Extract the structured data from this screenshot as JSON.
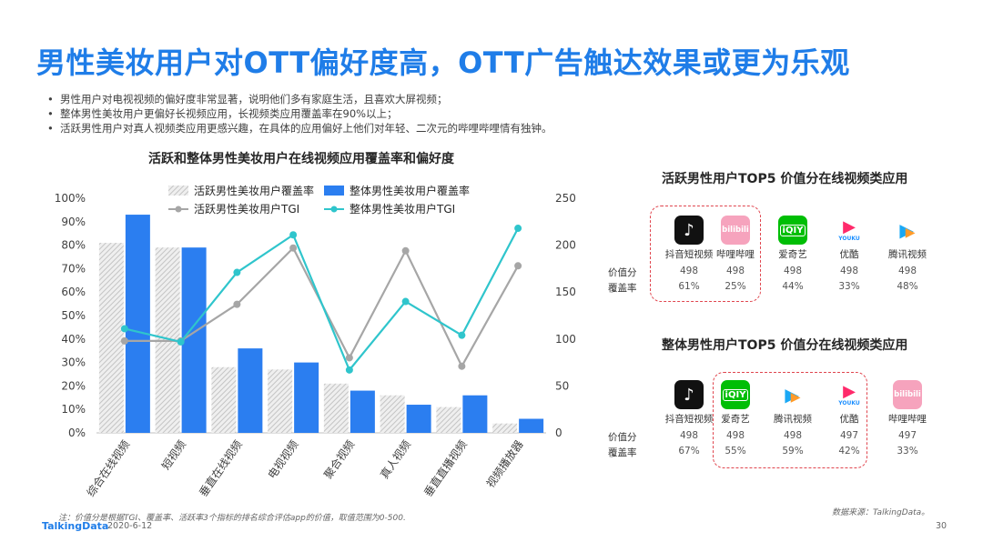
{
  "title": "男性美妆用户对OTT偏好度高，OTT广告触达效果或更为乐观",
  "bullets": [
    "男性用户对电视视频的偏好度非常显著，说明他们多有家庭生活，且喜欢大屏视频；",
    "整体男性美妆用户更偏好长视频应用，长视频类应用覆盖率在90%以上；",
    "活跃男性用户对真人视频类应用更感兴趣，在具体的应用偏好上他们对年轻、二次元的哔哩哔哩情有独钟。"
  ],
  "colors": {
    "accent": "#1f7de8",
    "bar_active": "#d9d9d9",
    "bar_total": "#2b7ef0",
    "line_active": "#a6a6a6",
    "line_total": "#2fc5cc",
    "dashed": "#e0454e"
  },
  "chart_data": {
    "type": "bar",
    "title": "活跃和整体男性美妆用户在线视频应用覆盖率和偏好度",
    "categories": [
      "综合在线视频",
      "短视频",
      "垂直在线视频",
      "电视视频",
      "聚合视频",
      "真人视频",
      "垂直直播视频",
      "视频播放器"
    ],
    "series": [
      {
        "name": "活跃男性美妆用户覆盖率",
        "kind": "bar",
        "axis": "left",
        "values": [
          81,
          79,
          28,
          27,
          21,
          16,
          11,
          4
        ]
      },
      {
        "name": "整体男性美妆用户覆盖率",
        "kind": "bar",
        "axis": "left",
        "values": [
          93,
          79,
          36,
          30,
          18,
          12,
          16,
          6
        ]
      },
      {
        "name": "活跃男性美妆用户TGI",
        "kind": "line",
        "axis": "right",
        "values": [
          98,
          98,
          137,
          197,
          80,
          194,
          71,
          178
        ]
      },
      {
        "name": "整体男性美妆用户TGI",
        "kind": "line",
        "axis": "right",
        "values": [
          111,
          97,
          171,
          211,
          67,
          140,
          104,
          218
        ]
      }
    ],
    "yleft": {
      "range": [
        0,
        100
      ],
      "ticks": [
        "0%",
        "10%",
        "20%",
        "30%",
        "40%",
        "50%",
        "60%",
        "70%",
        "80%",
        "90%",
        "100%"
      ]
    },
    "yright": {
      "range": [
        0,
        250
      ],
      "ticks": [
        "0",
        "50",
        "100",
        "150",
        "200",
        "250"
      ]
    }
  },
  "panels": [
    {
      "title": "活跃男性用户TOP5 价值分在线视频类应用",
      "row_labels": [
        "价值分",
        "覆盖率"
      ],
      "apps": [
        {
          "name": "抖音短视频",
          "icon": "douyin-icon",
          "score": "498",
          "coverage": "61%"
        },
        {
          "name": "哔哩哔哩",
          "icon": "bilibili-icon",
          "score": "498",
          "coverage": "25%"
        },
        {
          "name": "爱奇艺",
          "icon": "iqiyi-icon",
          "score": "498",
          "coverage": "44%"
        },
        {
          "name": "优酷",
          "icon": "youku-icon",
          "score": "498",
          "coverage": "33%"
        },
        {
          "name": "腾讯视频",
          "icon": "tencent-video-icon",
          "score": "498",
          "coverage": "48%"
        }
      ]
    },
    {
      "title": "整体男性用户TOP5 价值分在线视频类应用",
      "row_labels": [
        "价值分",
        "覆盖率"
      ],
      "apps": [
        {
          "name": "抖音短视频",
          "icon": "douyin-icon",
          "score": "498",
          "coverage": "67%"
        },
        {
          "name": "爱奇艺",
          "icon": "iqiyi-icon",
          "score": "498",
          "coverage": "55%"
        },
        {
          "name": "腾讯视频",
          "icon": "tencent-video-icon",
          "score": "498",
          "coverage": "59%"
        },
        {
          "name": "优酷",
          "icon": "youku-icon",
          "score": "497",
          "coverage": "42%"
        },
        {
          "name": "哔哩哔哩",
          "icon": "bilibili-icon",
          "score": "497",
          "coverage": "33%"
        }
      ]
    }
  ],
  "icon_labels": {
    "iqiyi": "iQIY",
    "youku": "YOUKU",
    "bilibili": "bilibili"
  },
  "footer": {
    "note": "注：价值分是根据TGI、覆盖率、活跃率3个指标的排名综合评估app的价值，取值范围为0-500.",
    "source": "数据来源：TalkingData。",
    "brand": "TalkingData",
    "date": "2020-6-12",
    "page": "30"
  }
}
